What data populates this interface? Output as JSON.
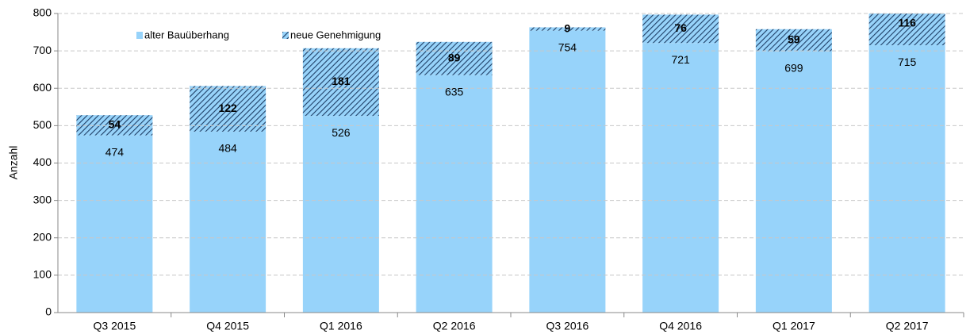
{
  "chart_data": {
    "type": "stacked_bar",
    "categories": [
      "Q3 2015",
      "Q4 2015",
      "Q1 2016",
      "Q2 2016",
      "Q3 2016",
      "Q4 2016",
      "Q1 2017",
      "Q2 2017"
    ],
    "series": [
      {
        "name": "alter Bauüberhang",
        "color": "#97d3fa",
        "values": [
          474,
          484,
          526,
          635,
          754,
          721,
          699,
          715
        ]
      },
      {
        "name": "neue Genehmigung",
        "color": "#1f3f66",
        "hatch": true,
        "values": [
          54,
          122,
          181,
          89,
          9,
          76,
          59,
          116
        ]
      }
    ],
    "y_label": "Anzahl",
    "ylim": [
      0,
      800
    ],
    "yticks": [
      0,
      100,
      200,
      300,
      400,
      500,
      600,
      700,
      800
    ],
    "grid": true,
    "legend": "top-left"
  }
}
